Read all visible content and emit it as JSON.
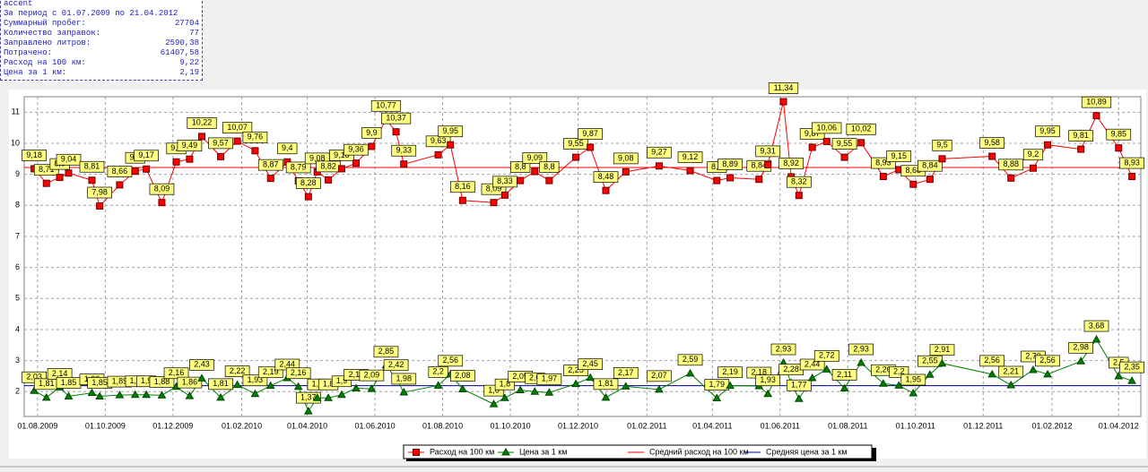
{
  "info": {
    "name": "accent",
    "period": "За период с 01.07.2009 по 21.04.2012",
    "rows": [
      [
        "Суммарный пробег:",
        "27704"
      ],
      [
        "Количество заправок:",
        "77"
      ],
      [
        "Заправлено литров:",
        "2590,38"
      ],
      [
        "Потрачено:",
        "61407,58"
      ],
      [
        "Расход на 100 км:",
        "9,22"
      ],
      [
        "Цена за 1 км:",
        "2,19"
      ]
    ]
  },
  "chart_data": {
    "type": "line",
    "x": [
      "29.07.2009",
      "09.08.2009",
      "21.08.2009",
      "29.08.2009",
      "19.09.2009",
      "26.09.2009",
      "14.10.2009",
      "28.10.2009",
      "07.11.2009",
      "21.11.2009",
      "04.12.2009",
      "16.12.2009",
      "27.12.2009",
      "13.01.2010",
      "28.01.2010",
      "13.02.2010",
      "27.02.2010",
      "14.03.2010",
      "24.03.2010",
      "02.04.2010",
      "10.04.2010",
      "20.04.2010",
      "02.05.2010",
      "15.05.2010",
      "29.05.2010",
      "11.06.2010",
      "20.06.2010",
      "27.06.2010",
      "28.07.2010",
      "08.08.2010",
      "19.08.2010",
      "16.09.2010",
      "26.09.2010",
      "10.10.2010",
      "23.10.2010",
      "05.11.2010",
      "29.11.2010",
      "12.12.2010",
      "26.12.2010",
      "13.01.2011",
      "12.02.2011",
      "12.03.2011",
      "05.04.2011",
      "17.04.2011",
      "13.05.2011",
      "21.05.2011",
      "04.06.2011",
      "11.06.2011",
      "18.06.2011",
      "30.06.2011",
      "13.07.2011",
      "29.07.2011",
      "13.08.2011",
      "02.09.2011",
      "16.09.2011",
      "29.09.2011",
      "14.10.2011",
      "25.10.2011",
      "09.12.2011",
      "26.12.2011",
      "15.01.2012",
      "28.01.2012",
      "27.02.2012",
      "12.03.2012",
      "01.04.2012",
      "13.04.2012"
    ],
    "series": [
      {
        "name": "Расход на 100 км",
        "color": "#ff0000",
        "marker": "square",
        "values": [
          9.18,
          8.71,
          8.9,
          9.04,
          8.81,
          7.98,
          8.66,
          9.1,
          9.17,
          8.09,
          9.4,
          9.49,
          10.22,
          9.57,
          10.07,
          9.76,
          8.87,
          9.4,
          8.79,
          8.28,
          9.08,
          8.82,
          9.18,
          9.36,
          9.9,
          10.77,
          10.37,
          9.33,
          9.63,
          9.95,
          8.16,
          8.09,
          8.33,
          8.8,
          9.09,
          8.8,
          9.55,
          9.87,
          8.48,
          9.08,
          9.27,
          9.12,
          8.8,
          8.89,
          8.84,
          9.31,
          11.34,
          8.92,
          8.32,
          9.87,
          10.06,
          9.55,
          10.02,
          8.93,
          9.15,
          8.68,
          8.84,
          9.5,
          9.58,
          8.88,
          9.2,
          9.95,
          9.81,
          10.89,
          9.85,
          8.93
        ],
        "value_labels": [
          "9,18",
          "8,71",
          "8,9",
          "9,04",
          "8,81",
          "7,98",
          "8,66",
          "9,1",
          "9,17",
          "8,09",
          "9,4",
          "9,49",
          "10,22",
          "9,57",
          "10,07",
          "9,76",
          "8,87",
          "9,4",
          "8,79",
          "8,28",
          "9,08",
          "8,82",
          "9,18",
          "9,36",
          "9,9",
          "10,77",
          "10,37",
          "9,33",
          "9,63",
          "9,95",
          "8,16",
          "8,09",
          "8,33",
          "8,8",
          "9,09",
          "8,8",
          "9,55",
          "9,87",
          "8,48",
          "9,08",
          "9,27",
          "9,12",
          "8,8",
          "8,89",
          "8,84",
          "9,31",
          "11,34",
          "8,92",
          "8,32",
          "9,87",
          "10,06",
          "9,55",
          "10,02",
          "8,93",
          "9,15",
          "8,68",
          "8,84",
          "9,5",
          "9,58",
          "8,88",
          "9,2",
          "9,95",
          "9,81",
          "10,89",
          "9,85",
          "8,93"
        ]
      },
      {
        "name": "Цена за 1 км",
        "color": "#008000",
        "marker": "triangle",
        "values": [
          2.03,
          1.81,
          2.14,
          1.85,
          1.96,
          1.85,
          1.89,
          1.9,
          1.9,
          1.88,
          2.16,
          1.86,
          2.43,
          1.81,
          2.22,
          1.93,
          2.19,
          2.44,
          2.16,
          1.37,
          1.8,
          1.8,
          1.9,
          2.11,
          2.09,
          2.85,
          2.42,
          1.98,
          2.2,
          2.56,
          2.08,
          1.6,
          1.8,
          2.05,
          2.0,
          1.97,
          2.25,
          2.45,
          1.81,
          2.17,
          2.07,
          2.59,
          1.79,
          2.19,
          2.18,
          1.93,
          2.93,
          2.28,
          1.77,
          2.44,
          2.72,
          2.11,
          2.93,
          2.26,
          2.2,
          1.95,
          2.55,
          2.91,
          2.56,
          2.21,
          2.7,
          2.56,
          2.98,
          3.68,
          2.5,
          2.35
        ],
        "value_labels": [
          "2,03",
          "1,81",
          "2,14",
          "1,85",
          "1,96",
          "1,85",
          "1,89",
          "1,9",
          "1,9",
          "1,88",
          "2,16",
          "1,86",
          "2,43",
          "1,81",
          "2,22",
          "1,93",
          "2,19",
          "2,44",
          "2,16",
          "1,37",
          "1,8",
          "1,8",
          "1,9",
          "2,11",
          "2,09",
          "2,85",
          "2,42",
          "1,98",
          "2,2",
          "2,56",
          "2,08",
          "1,6",
          "1,8",
          "2,05",
          "2,0",
          "1,97",
          "2,25",
          "2,45",
          "1,81",
          "2,17",
          "2,07",
          "2,59",
          "1,79",
          "2,19",
          "2,18",
          "1,93",
          "2,93",
          "2,28",
          "1,77",
          "2,44",
          "2,72",
          "2,11",
          "2,93",
          "2,26",
          "2,2",
          "1,95",
          "2,55",
          "2,91",
          "2,56",
          "2,21",
          "2,70",
          "2,56",
          "2,98",
          "3,68",
          "2,5",
          "2,35"
        ]
      }
    ],
    "reference_lines": [
      {
        "name": "Средний расход на 100 км",
        "color": "#ff0000",
        "value": 9.22
      },
      {
        "name": "Средняя цена за 1 км",
        "color": "#000080",
        "value": 2.19
      }
    ],
    "xlim": [
      "20.07.2009",
      "21.04.2012"
    ],
    "xticks": [
      "01.08.2009",
      "01.10.2009",
      "01.12.2009",
      "01.02.2010",
      "01.04.2010",
      "01.06.2010",
      "01.08.2010",
      "01.10.2010",
      "01.12.2010",
      "01.02.2011",
      "01.04.2011",
      "01.06.2011",
      "01.08.2011",
      "01.10.2011",
      "01.12.2011",
      "01.02.2012",
      "01.04.2012"
    ],
    "ylim": [
      1.2,
      11.5
    ],
    "yticks": [
      2,
      3,
      4,
      5,
      6,
      7,
      8,
      9,
      10,
      11
    ],
    "grid": true,
    "legend": "bottom"
  }
}
